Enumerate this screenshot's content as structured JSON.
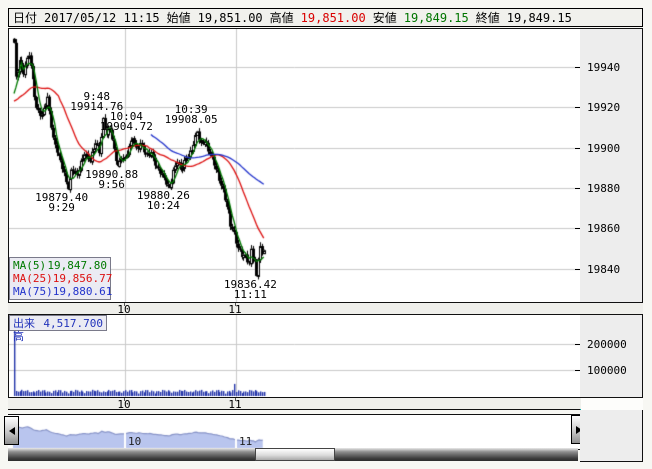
{
  "header": {
    "date_label": "日付",
    "datetime": "2017/05/12 11:15",
    "open_label": "始値",
    "open": "19,851.00",
    "high_label": "高値",
    "high": "19,851.00",
    "low_label": "安値",
    "low": "19,849.15",
    "close_label": "終値",
    "close": "19,849.15"
  },
  "colors": {
    "grid": "#c9c9c9",
    "candle_up": "#ffffff",
    "candle_down": "#000000",
    "ma5": "#007a00",
    "ma25": "#dd1111",
    "ma75": "#2233cc",
    "volume_bar": "#2233aa",
    "nav_fill": "#b9c5ee",
    "nav_stroke": "#8894c8",
    "high_text": "#d90000",
    "low_text": "#007500",
    "accent_teal": "#00a0a0"
  },
  "icons": {
    "left_arrow": "left-arrow-icon",
    "right_arrow": "right-arrow-icon"
  },
  "chart_data": [
    {
      "name": "price",
      "type": "candlestick",
      "interval": "1min",
      "time_range": [
        "9:00",
        "11:15"
      ],
      "ylim": [
        19824,
        19958
      ],
      "yticks": [
        "19940",
        "19920",
        "19900",
        "19880",
        "19860",
        "19840"
      ],
      "xticks": [
        "10",
        "11"
      ],
      "grid": true,
      "waypoints": [
        [
          0,
          19952
        ],
        [
          1,
          19934
        ],
        [
          3,
          19944
        ],
        [
          5,
          19938
        ],
        [
          8,
          19946
        ],
        [
          12,
          19920
        ],
        [
          15,
          19916
        ],
        [
          18,
          19924
        ],
        [
          21,
          19905
        ],
        [
          25,
          19893
        ],
        [
          29,
          19879.4
        ],
        [
          31,
          19890
        ],
        [
          34,
          19886
        ],
        [
          38,
          19898
        ],
        [
          41,
          19894
        ],
        [
          44,
          19902
        ],
        [
          46,
          19898
        ],
        [
          48,
          19914.76
        ],
        [
          50,
          19907
        ],
        [
          52,
          19909
        ],
        [
          54,
          19898
        ],
        [
          56,
          19890.88
        ],
        [
          58,
          19896
        ],
        [
          60,
          19894
        ],
        [
          62,
          19900
        ],
        [
          64,
          19904.72
        ],
        [
          66,
          19900
        ],
        [
          68,
          19902
        ],
        [
          71,
          19896
        ],
        [
          74,
          19898
        ],
        [
          77,
          19890
        ],
        [
          80,
          19886
        ],
        [
          84,
          19880.26
        ],
        [
          86,
          19888
        ],
        [
          88,
          19893
        ],
        [
          90,
          19889
        ],
        [
          93,
          19896
        ],
        [
          96,
          19898
        ],
        [
          99,
          19908.05
        ],
        [
          101,
          19902
        ],
        [
          103,
          19904
        ],
        [
          105,
          19898
        ],
        [
          107,
          19894
        ],
        [
          109,
          19890
        ],
        [
          111,
          19885
        ],
        [
          113,
          19878
        ],
        [
          115,
          19870
        ],
        [
          117,
          19862
        ],
        [
          119,
          19858
        ],
        [
          121,
          19850
        ],
        [
          123,
          19846
        ],
        [
          125,
          19846
        ],
        [
          127,
          19843
        ],
        [
          128,
          19850
        ],
        [
          129,
          19846
        ],
        [
          130,
          19844
        ],
        [
          131,
          19836.42
        ],
        [
          132,
          19845
        ],
        [
          133,
          19850
        ],
        [
          134,
          19847
        ],
        [
          135,
          19849.15
        ]
      ],
      "annotations": [
        {
          "time": "9:48",
          "price": 19914.76,
          "position": "above",
          "label_lines": [
            "9:48",
            "19914.76"
          ]
        },
        {
          "time": "10:04",
          "price": 19904.72,
          "position": "above",
          "label_lines": [
            "10:04",
            "19904.72"
          ]
        },
        {
          "time": "10:39",
          "price": 19908.05,
          "position": "above",
          "label_lines": [
            "10:39",
            "19908.05"
          ]
        },
        {
          "time": "9:29",
          "price": 19879.4,
          "position": "below",
          "label_lines": [
            "19879.40",
            "9:29"
          ]
        },
        {
          "time": "9:56",
          "price": 19890.88,
          "position": "below",
          "label_lines": [
            "19890.88",
            "9:56"
          ]
        },
        {
          "time": "10:24",
          "price": 19880.26,
          "position": "below",
          "label_lines": [
            "19880.26",
            "10:24"
          ]
        },
        {
          "time": "11:11",
          "price": 19836.42,
          "position": "below",
          "label_lines": [
            "19836.42",
            "11:11"
          ]
        }
      ],
      "moving_averages": [
        {
          "label": "MA(5)",
          "period": 5,
          "value": "19,847.80",
          "color": "#007a00"
        },
        {
          "label": "MA(25)",
          "period": 25,
          "value": "19,856.77",
          "color": "#dd1111"
        },
        {
          "label": "MA(75)",
          "period": 75,
          "value": "19,880.61",
          "color": "#2233cc"
        }
      ]
    },
    {
      "name": "volume",
      "type": "bar",
      "label": "出来高",
      "current_value": "4,517.700",
      "yticks": [
        200000,
        100000
      ],
      "xticks": [
        "10",
        "11"
      ],
      "first_bar": 265000,
      "typical_base": 8000,
      "typical_amp1": 9000,
      "typical_amp2": 7000,
      "spike_minute": 119,
      "spike_extra": 24000
    },
    {
      "name": "navigator",
      "type": "area",
      "xticks": [
        "10",
        "11"
      ],
      "shows": "full session price overview"
    }
  ],
  "scrollbar": {
    "thumb_left": 247,
    "thumb_width": 80
  }
}
